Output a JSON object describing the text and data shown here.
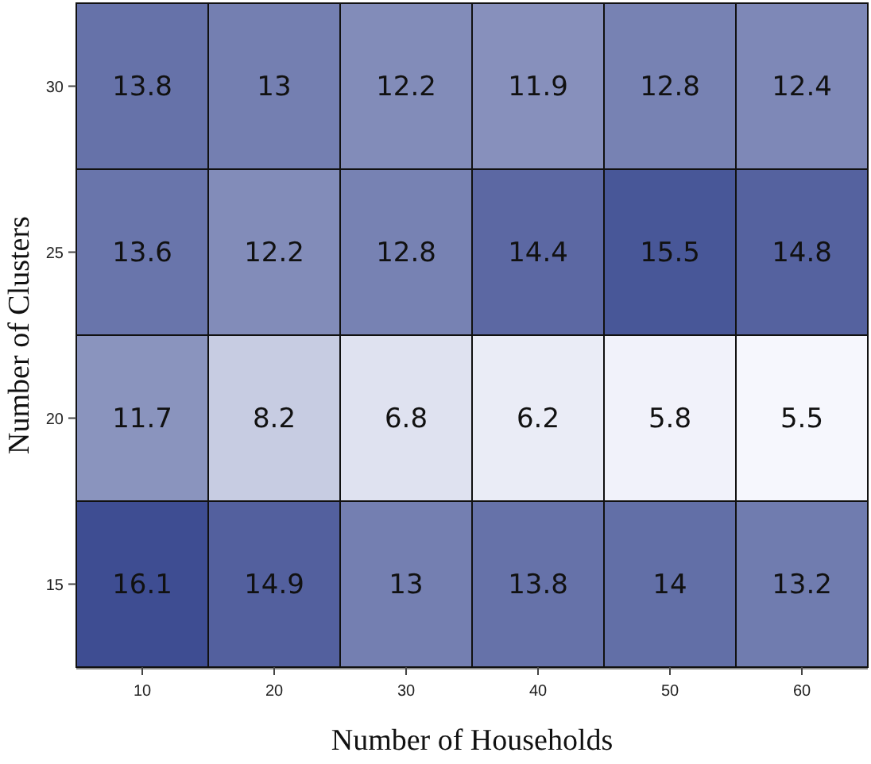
{
  "chart_data": {
    "type": "heatmap",
    "xlabel": "Number of Households",
    "ylabel": "Number of Clusters",
    "categories": [
      "10",
      "20",
      "30",
      "40",
      "50",
      "60"
    ],
    "y_categories": [
      "30",
      "25",
      "20",
      "15"
    ],
    "cells": [
      [
        13.8,
        13,
        12.2,
        11.9,
        12.8,
        12.4
      ],
      [
        13.6,
        12.2,
        12.8,
        14.4,
        15.5,
        14.8
      ],
      [
        11.7,
        8.2,
        6.8,
        6.2,
        5.8,
        5.5
      ],
      [
        16.1,
        14.9,
        13,
        13.8,
        14,
        13.2
      ]
    ],
    "data_labels": true
  }
}
